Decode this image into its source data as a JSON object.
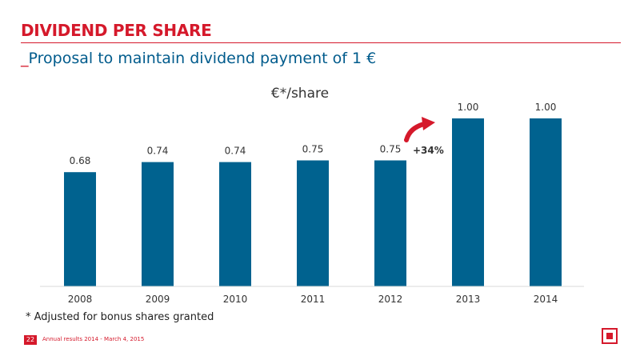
{
  "header": {
    "title": "DIVIDEND PER SHARE",
    "subtitle_prefix": "_",
    "subtitle": "Proposal to maintain dividend payment of 1 €"
  },
  "chart_data": {
    "type": "bar",
    "title": "€*/share",
    "categories": [
      "2008",
      "2009",
      "2010",
      "2011",
      "2012",
      "2013",
      "2014"
    ],
    "values": [
      0.68,
      0.74,
      0.74,
      0.75,
      0.75,
      1.0,
      1.0
    ],
    "value_labels": [
      "0.68",
      "0.74",
      "0.74",
      "0.75",
      "0.75",
      "1.00",
      "1.00"
    ],
    "ylim": [
      0,
      1.0
    ],
    "grid": false,
    "bar_color": "#00628f",
    "annotation": {
      "text": "+34%",
      "arrow_color": "#d5192b"
    }
  },
  "footnote": "* Adjusted for bonus shares granted",
  "footer": {
    "page_number": "22",
    "text": "Annual results 2014 - March 4, 2015"
  },
  "colors": {
    "accent": "#d5192b",
    "brand_blue": "#005b8c"
  }
}
